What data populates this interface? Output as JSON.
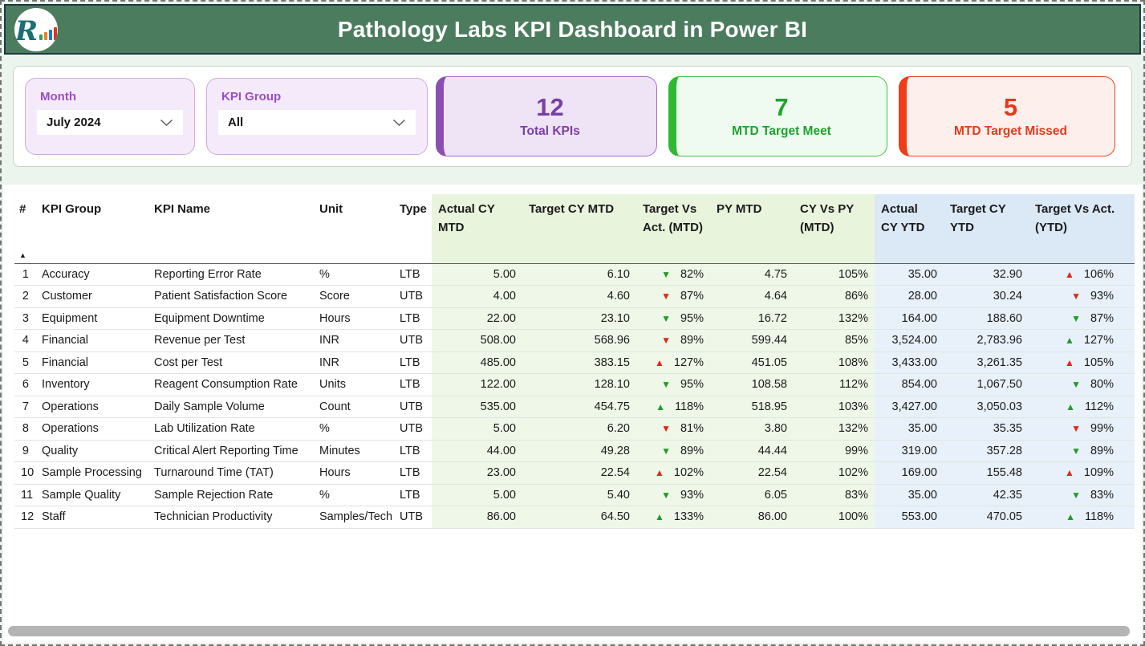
{
  "header": {
    "title": "Pathology Labs KPI Dashboard in Power BI"
  },
  "filters": {
    "month": {
      "label": "Month",
      "value": "July 2024"
    },
    "kpi_group": {
      "label": "KPI Group",
      "value": "All"
    }
  },
  "cards": [
    {
      "value": "12",
      "label": "Total KPIs",
      "accent": "#8a4fb0"
    },
    {
      "value": "7",
      "label": "MTD Target Meet",
      "accent": "#2eb833"
    },
    {
      "value": "5",
      "label": "MTD Target Missed",
      "accent": "#f03c17"
    }
  ],
  "table": {
    "sort_indicator": "▲",
    "columns": [
      "#",
      "KPI Group",
      "KPI Name",
      "Unit",
      "Type",
      "Actual CY MTD",
      "Target CY MTD",
      "Target Vs Act. (MTD)",
      "PY MTD",
      "CY Vs PY (MTD)",
      "Actual CY YTD",
      "Target CY YTD",
      "Target Vs Act. (YTD)"
    ],
    "rows": [
      {
        "num": "1",
        "group": "Accuracy",
        "name": "Reporting Error Rate",
        "unit": "%",
        "type": "LTB",
        "actual_mtd": "5.00",
        "target_mtd": "6.10",
        "tva_mtd": {
          "arrow": "▼",
          "color": "green",
          "value": "82%"
        },
        "py_mtd": "4.75",
        "cy_vs_py": "105%",
        "actual_ytd": "35.00",
        "target_ytd": "32.90",
        "tva_ytd": {
          "arrow": "▲",
          "color": "red",
          "value": "106%"
        }
      },
      {
        "num": "2",
        "group": "Customer",
        "name": "Patient Satisfaction Score",
        "unit": "Score",
        "type": "UTB",
        "actual_mtd": "4.00",
        "target_mtd": "4.60",
        "tva_mtd": {
          "arrow": "▼",
          "color": "red",
          "value": "87%"
        },
        "py_mtd": "4.64",
        "cy_vs_py": "86%",
        "actual_ytd": "28.00",
        "target_ytd": "30.24",
        "tva_ytd": {
          "arrow": "▼",
          "color": "red",
          "value": "93%"
        }
      },
      {
        "num": "3",
        "group": "Equipment",
        "name": "Equipment Downtime",
        "unit": "Hours",
        "type": "LTB",
        "actual_mtd": "22.00",
        "target_mtd": "23.10",
        "tva_mtd": {
          "arrow": "▼",
          "color": "green",
          "value": "95%"
        },
        "py_mtd": "16.72",
        "cy_vs_py": "132%",
        "actual_ytd": "164.00",
        "target_ytd": "188.60",
        "tva_ytd": {
          "arrow": "▼",
          "color": "green",
          "value": "87%"
        }
      },
      {
        "num": "4",
        "group": "Financial",
        "name": "Revenue per Test",
        "unit": "INR",
        "type": "UTB",
        "actual_mtd": "508.00",
        "target_mtd": "568.96",
        "tva_mtd": {
          "arrow": "▼",
          "color": "red",
          "value": "89%"
        },
        "py_mtd": "599.44",
        "cy_vs_py": "85%",
        "actual_ytd": "3,524.00",
        "target_ytd": "2,783.96",
        "tva_ytd": {
          "arrow": "▲",
          "color": "green",
          "value": "127%"
        }
      },
      {
        "num": "5",
        "group": "Financial",
        "name": "Cost per Test",
        "unit": "INR",
        "type": "LTB",
        "actual_mtd": "485.00",
        "target_mtd": "383.15",
        "tva_mtd": {
          "arrow": "▲",
          "color": "red",
          "value": "127%"
        },
        "py_mtd": "451.05",
        "cy_vs_py": "108%",
        "actual_ytd": "3,433.00",
        "target_ytd": "3,261.35",
        "tva_ytd": {
          "arrow": "▲",
          "color": "red",
          "value": "105%"
        }
      },
      {
        "num": "6",
        "group": "Inventory",
        "name": "Reagent Consumption Rate",
        "unit": "Units",
        "type": "LTB",
        "actual_mtd": "122.00",
        "target_mtd": "128.10",
        "tva_mtd": {
          "arrow": "▼",
          "color": "green",
          "value": "95%"
        },
        "py_mtd": "108.58",
        "cy_vs_py": "112%",
        "actual_ytd": "854.00",
        "target_ytd": "1,067.50",
        "tva_ytd": {
          "arrow": "▼",
          "color": "green",
          "value": "80%"
        }
      },
      {
        "num": "7",
        "group": "Operations",
        "name": "Daily Sample Volume",
        "unit": "Count",
        "type": "UTB",
        "actual_mtd": "535.00",
        "target_mtd": "454.75",
        "tva_mtd": {
          "arrow": "▲",
          "color": "green",
          "value": "118%"
        },
        "py_mtd": "518.95",
        "cy_vs_py": "103%",
        "actual_ytd": "3,427.00",
        "target_ytd": "3,050.03",
        "tva_ytd": {
          "arrow": "▲",
          "color": "green",
          "value": "112%"
        }
      },
      {
        "num": "8",
        "group": "Operations",
        "name": "Lab Utilization Rate",
        "unit": "%",
        "type": "UTB",
        "actual_mtd": "5.00",
        "target_mtd": "6.20",
        "tva_mtd": {
          "arrow": "▼",
          "color": "red",
          "value": "81%"
        },
        "py_mtd": "3.80",
        "cy_vs_py": "132%",
        "actual_ytd": "35.00",
        "target_ytd": "35.35",
        "tva_ytd": {
          "arrow": "▼",
          "color": "red",
          "value": "99%"
        }
      },
      {
        "num": "9",
        "group": "Quality",
        "name": "Critical Alert Reporting Time",
        "unit": "Minutes",
        "type": "LTB",
        "actual_mtd": "44.00",
        "target_mtd": "49.28",
        "tva_mtd": {
          "arrow": "▼",
          "color": "green",
          "value": "89%"
        },
        "py_mtd": "44.44",
        "cy_vs_py": "99%",
        "actual_ytd": "319.00",
        "target_ytd": "357.28",
        "tva_ytd": {
          "arrow": "▼",
          "color": "green",
          "value": "89%"
        }
      },
      {
        "num": "10",
        "group": "Sample Processing",
        "name": "Turnaround Time (TAT)",
        "unit": "Hours",
        "type": "LTB",
        "actual_mtd": "23.00",
        "target_mtd": "22.54",
        "tva_mtd": {
          "arrow": "▲",
          "color": "red",
          "value": "102%"
        },
        "py_mtd": "22.54",
        "cy_vs_py": "102%",
        "actual_ytd": "169.00",
        "target_ytd": "155.48",
        "tva_ytd": {
          "arrow": "▲",
          "color": "red",
          "value": "109%"
        }
      },
      {
        "num": "11",
        "group": "Sample Quality",
        "name": "Sample Rejection Rate",
        "unit": "%",
        "type": "LTB",
        "actual_mtd": "5.00",
        "target_mtd": "5.40",
        "tva_mtd": {
          "arrow": "▼",
          "color": "green",
          "value": "93%"
        },
        "py_mtd": "6.05",
        "cy_vs_py": "83%",
        "actual_ytd": "35.00",
        "target_ytd": "42.35",
        "tva_ytd": {
          "arrow": "▼",
          "color": "green",
          "value": "83%"
        }
      },
      {
        "num": "12",
        "group": "Staff",
        "name": "Technician Productivity",
        "unit": "Samples/Tech",
        "type": "UTB",
        "actual_mtd": "86.00",
        "target_mtd": "64.50",
        "tva_mtd": {
          "arrow": "▲",
          "color": "green",
          "value": "133%"
        },
        "py_mtd": "86.00",
        "cy_vs_py": "100%",
        "actual_ytd": "553.00",
        "target_ytd": "470.05",
        "tva_ytd": {
          "arrow": "▲",
          "color": "green",
          "value": "118%"
        }
      }
    ]
  },
  "colors": {
    "header_green": "#4c7c5e",
    "mtd_section_tint": "#eff7e8",
    "ytd_section_tint": "#e8f0fa",
    "good_arrow": "#1f9d28",
    "bad_arrow": "#e22616",
    "slicer_accent": "#9b4dc8"
  }
}
